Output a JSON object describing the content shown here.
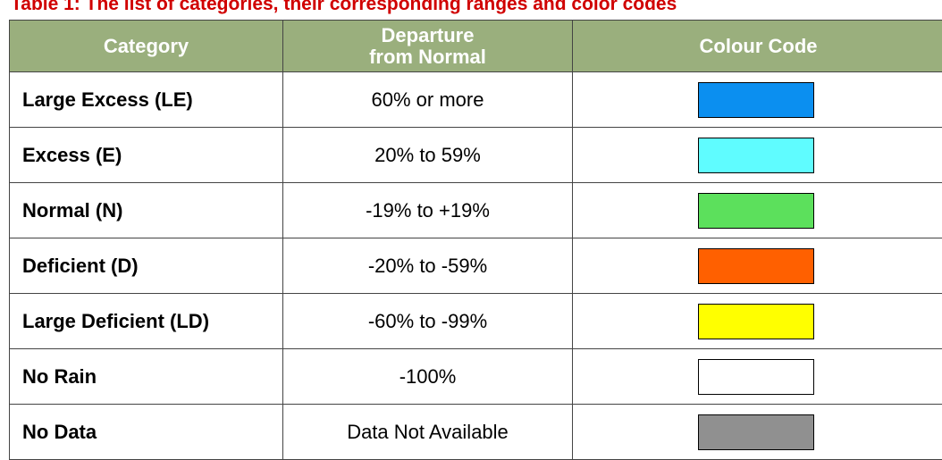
{
  "title": "Table 1: The list of categories, their corresponding ranges and color codes",
  "table": {
    "header": [
      "Category",
      "Departure from Normal",
      "Colour Code"
    ],
    "rows": [
      {
        "category": "Large Excess (LE)",
        "departure": "60% or more",
        "color": "#0b8ff0"
      },
      {
        "category": "Excess (E)",
        "departure": "20% to 59%",
        "color": "#5ffcff"
      },
      {
        "category": "Normal (N)",
        "departure": "-19% to +19%",
        "color": "#5ce05c"
      },
      {
        "category": "Deficient (D)",
        "departure": "-20% to -59%",
        "color": "#ff6000"
      },
      {
        "category": "Large Deficient (LD)",
        "departure": "-60% to -99%",
        "color": "#ffff00"
      },
      {
        "category": "No Rain",
        "departure": "-100%",
        "color": "#ffffff"
      },
      {
        "category": "No Data",
        "departure": "Data Not Available",
        "color": "#909090"
      }
    ]
  }
}
